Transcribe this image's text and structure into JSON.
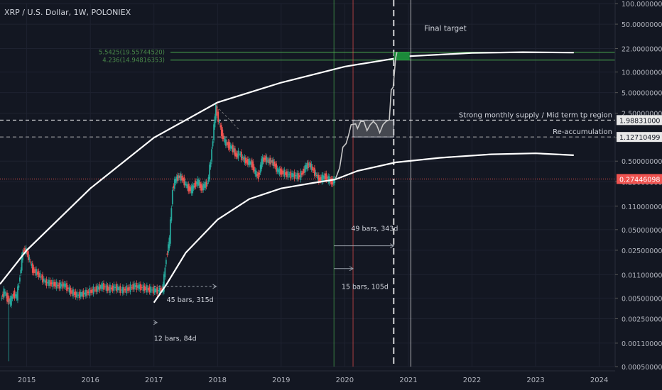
{
  "header": {
    "title": "XRP / U.S. Dollar, 1W, POLONIEX"
  },
  "colors": {
    "background": "#131722",
    "text": "#d1d4dc",
    "grid": "#1e2230",
    "up_candle": "#26a69a",
    "down_candle": "#ef5350",
    "arc": "#ffffff",
    "fib_line": "#4caf50",
    "fib_text": "#4a8a4a",
    "target_box": "#1b8a3a",
    "price_label_bg": "#ef5350"
  },
  "chart_data": {
    "type": "candlestick",
    "title": "XRP / U.S. Dollar, 1W, POLONIEX",
    "y_scale": "log",
    "ylim": [
      0.0005,
      100
    ],
    "xlim": [
      2014.58,
      2024.25
    ],
    "x_ticks": [
      "2015",
      "2016",
      "2017",
      "2018",
      "2019",
      "2020",
      "2021",
      "2022",
      "2023",
      "2024"
    ],
    "y_ticks": [
      "100.00000000",
      "50.00000000",
      "22.00000000",
      "10.00000000",
      "5.00000000",
      "2.50000000",
      "1.10000000",
      "0.50000000",
      "0.25000000",
      "0.11000000",
      "0.05000000",
      "0.02500000",
      "0.01100000",
      "0.00500000",
      "0.00250000",
      "0.00110000",
      "0.00050000"
    ],
    "price_series": [
      [
        2014.6,
        0.0048
      ],
      [
        2014.65,
        0.0062
      ],
      [
        2014.7,
        0.005
      ],
      [
        2014.75,
        0.0044
      ],
      [
        2014.8,
        0.0058
      ],
      [
        2014.85,
        0.0052
      ],
      [
        2014.9,
        0.0105
      ],
      [
        2014.93,
        0.019
      ],
      [
        2014.96,
        0.026
      ],
      [
        2015.0,
        0.024
      ],
      [
        2015.05,
        0.018
      ],
      [
        2015.1,
        0.013
      ],
      [
        2015.2,
        0.011
      ],
      [
        2015.3,
        0.0085
      ],
      [
        2015.4,
        0.0082
      ],
      [
        2015.5,
        0.0076
      ],
      [
        2015.6,
        0.0078
      ],
      [
        2015.7,
        0.0062
      ],
      [
        2015.8,
        0.0055
      ],
      [
        2015.9,
        0.0058
      ],
      [
        2016.0,
        0.0062
      ],
      [
        2016.1,
        0.0068
      ],
      [
        2016.2,
        0.0075
      ],
      [
        2016.3,
        0.0068
      ],
      [
        2016.4,
        0.0072
      ],
      [
        2016.5,
        0.0065
      ],
      [
        2016.6,
        0.0068
      ],
      [
        2016.7,
        0.0075
      ],
      [
        2016.8,
        0.0072
      ],
      [
        2016.9,
        0.0068
      ],
      [
        2017.0,
        0.0065
      ],
      [
        2017.1,
        0.0064
      ],
      [
        2017.15,
        0.007
      ],
      [
        2017.2,
        0.02
      ],
      [
        2017.25,
        0.035
      ],
      [
        2017.3,
        0.2
      ],
      [
        2017.35,
        0.27
      ],
      [
        2017.4,
        0.3
      ],
      [
        2017.45,
        0.28
      ],
      [
        2017.5,
        0.23
      ],
      [
        2017.55,
        0.2
      ],
      [
        2017.6,
        0.19
      ],
      [
        2017.65,
        0.23
      ],
      [
        2017.7,
        0.25
      ],
      [
        2017.75,
        0.2
      ],
      [
        2017.8,
        0.22
      ],
      [
        2017.85,
        0.24
      ],
      [
        2017.9,
        0.5
      ],
      [
        2017.95,
        1.6
      ],
      [
        2017.98,
        3.0
      ],
      [
        2018.02,
        2.0
      ],
      [
        2018.07,
        1.3
      ],
      [
        2018.12,
        0.95
      ],
      [
        2018.18,
        0.85
      ],
      [
        2018.25,
        0.75
      ],
      [
        2018.3,
        0.6
      ],
      [
        2018.35,
        0.65
      ],
      [
        2018.4,
        0.55
      ],
      [
        2018.45,
        0.5
      ],
      [
        2018.5,
        0.48
      ],
      [
        2018.55,
        0.45
      ],
      [
        2018.6,
        0.33
      ],
      [
        2018.65,
        0.3
      ],
      [
        2018.7,
        0.5
      ],
      [
        2018.75,
        0.55
      ],
      [
        2018.8,
        0.5
      ],
      [
        2018.85,
        0.5
      ],
      [
        2018.9,
        0.45
      ],
      [
        2018.95,
        0.36
      ],
      [
        2019.0,
        0.35
      ],
      [
        2019.1,
        0.32
      ],
      [
        2019.2,
        0.31
      ],
      [
        2019.3,
        0.3
      ],
      [
        2019.35,
        0.35
      ],
      [
        2019.4,
        0.42
      ],
      [
        2019.45,
        0.45
      ],
      [
        2019.5,
        0.38
      ],
      [
        2019.55,
        0.32
      ],
      [
        2019.6,
        0.27
      ],
      [
        2019.65,
        0.28
      ],
      [
        2019.7,
        0.3
      ],
      [
        2019.75,
        0.27
      ],
      [
        2019.8,
        0.25
      ],
      [
        2019.85,
        0.26
      ]
    ],
    "upper_arc": [
      [
        2014.58,
        0.008
      ],
      [
        2015.0,
        0.025
      ],
      [
        2016.0,
        0.2
      ],
      [
        2017.0,
        1.1
      ],
      [
        2018.0,
        3.6
      ],
      [
        2019.0,
        7.0
      ],
      [
        2020.0,
        12.0
      ],
      [
        2021.0,
        17.0
      ],
      [
        2022.0,
        19.0
      ],
      [
        2022.8,
        19.5
      ],
      [
        2023.6,
        19.2
      ]
    ],
    "lower_arc": [
      [
        2017.0,
        0.0043
      ],
      [
        2017.2,
        0.008
      ],
      [
        2017.5,
        0.023
      ],
      [
        2018.0,
        0.07
      ],
      [
        2018.5,
        0.14
      ],
      [
        2019.0,
        0.2
      ],
      [
        2019.5,
        0.24
      ],
      [
        2019.85,
        0.27
      ],
      [
        2020.2,
        0.36
      ],
      [
        2020.8,
        0.48
      ],
      [
        2021.5,
        0.56
      ],
      [
        2022.3,
        0.63
      ],
      [
        2023.0,
        0.65
      ],
      [
        2023.6,
        0.61
      ]
    ],
    "projection_path": [
      [
        2019.85,
        0.27
      ],
      [
        2019.92,
        0.4
      ],
      [
        2019.97,
        0.8
      ],
      [
        2020.02,
        0.9
      ],
      [
        2020.06,
        1.2
      ],
      [
        2020.1,
        1.7
      ],
      [
        2020.17,
        1.75
      ],
      [
        2020.2,
        1.5
      ],
      [
        2020.25,
        1.9
      ],
      [
        2020.3,
        1.9
      ],
      [
        2020.35,
        1.4
      ],
      [
        2020.4,
        1.7
      ],
      [
        2020.45,
        1.9
      ],
      [
        2020.5,
        1.7
      ],
      [
        2020.55,
        1.3
      ],
      [
        2020.6,
        1.7
      ],
      [
        2020.65,
        1.9
      ],
      [
        2020.7,
        2.0
      ],
      [
        2020.73,
        5.5
      ],
      [
        2020.76,
        6.0
      ],
      [
        2020.8,
        16.0
      ],
      [
        2020.82,
        19.5
      ]
    ],
    "reaccumulation_box": {
      "x": [
        2020.13,
        2020.77
      ],
      "y": [
        1.127,
        1.988
      ]
    },
    "target_box": {
      "x": [
        2020.77,
        2021.02
      ],
      "y": [
        14.95,
        19.56
      ]
    },
    "horizontal_levels": [
      {
        "price": 19.5574452,
        "style": "solid",
        "color": "#4caf50",
        "left_label": "5.5425(19.55744520)"
      },
      {
        "price": 14.94816353,
        "style": "solid",
        "color": "#4caf50",
        "left_label": "4.236(14.94816353)"
      },
      {
        "price": 1.98831,
        "style": "dashed",
        "color": "#ffffff",
        "label": "Strong monthly supply / Mid term tp region",
        "axis_label": "1.98831000"
      },
      {
        "price": 1.12710499,
        "style": "dashed",
        "color": "#aaaaaa",
        "label": "Re-accumulation",
        "axis_label": "1.12710499"
      },
      {
        "price": 0.27446098,
        "style": "dotted",
        "color": "#ef5350",
        "axis_label": "0.27446098"
      }
    ],
    "vertical_lines": [
      {
        "x": 2019.83,
        "color": "#4caf50",
        "style": "solid"
      },
      {
        "x": 2020.13,
        "color": "#ef5350",
        "style": "solid"
      },
      {
        "x": 2020.77,
        "color": "#ffffff",
        "style": "dashed"
      },
      {
        "x": 2021.04,
        "color": "#ffffff",
        "style": "solid"
      }
    ],
    "measures": [
      {
        "x": [
          2017.0,
          2017.05
        ],
        "y": 0.0022,
        "label": "12 bars, 84d",
        "label_pos": [
          2017.0,
          0.0012
        ]
      },
      {
        "x": [
          2017.0,
          2017.98
        ],
        "y": 0.0074,
        "label": "45 bars, 315d",
        "label_pos": [
          2017.2,
          0.0044
        ]
      },
      {
        "x": [
          2019.83,
          2020.13
        ],
        "y": 0.0135,
        "label": "15 bars, 105d",
        "label_pos": [
          2019.95,
          0.0068
        ]
      },
      {
        "x": [
          2019.83,
          2020.77
        ],
        "y": 0.029,
        "label": "49 bars, 343d",
        "label_pos": [
          2020.1,
          0.048
        ]
      }
    ],
    "annotations": [
      {
        "text": "Final target",
        "x": 2021.25,
        "y": 40
      }
    ]
  }
}
